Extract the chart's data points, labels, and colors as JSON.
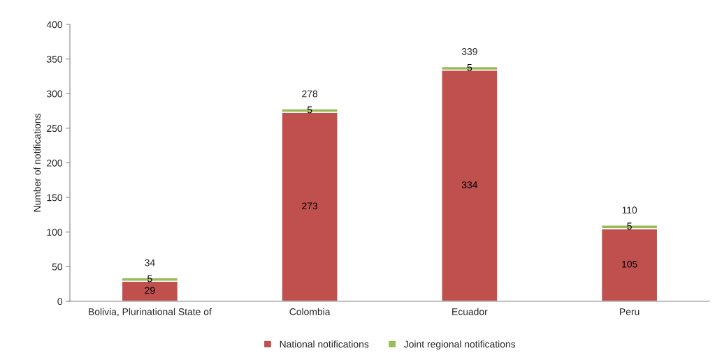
{
  "chart_data": {
    "type": "bar",
    "stacked": true,
    "ylabel": "Number of notifications",
    "categories": [
      "Bolivia, Plurinational State of",
      "Colombia",
      "Ecuador",
      "Peru"
    ],
    "series": [
      {
        "name": "National notifications",
        "color": "#c0504d",
        "values": [
          29,
          273,
          334,
          105
        ]
      },
      {
        "name": "Joint regional notifications",
        "color": "#9bbb59",
        "values": [
          5,
          5,
          5,
          5
        ]
      }
    ],
    "totals": [
      "34",
      "278",
      "339",
      "110"
    ],
    "data_labels": true,
    "ylim": [
      0,
      400
    ],
    "yticks": [
      0,
      50,
      100,
      150,
      200,
      250,
      300,
      350,
      400
    ],
    "grid": false,
    "legend": "bottom"
  }
}
